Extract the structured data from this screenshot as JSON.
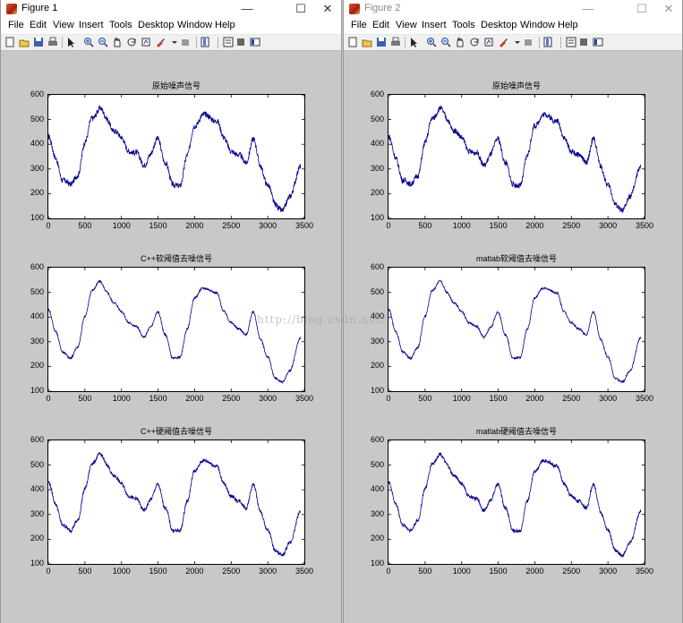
{
  "windows": [
    {
      "title": "Figure 1",
      "menu": [
        "File",
        "Edit",
        "View",
        "Insert",
        "Tools",
        "Desktop",
        "Window",
        "Help"
      ],
      "plots": [
        {
          "title": "原始噪声信号"
        },
        {
          "title": "C++软阈值去噪信号"
        },
        {
          "title": "C++硬阈值去噪信号"
        }
      ]
    },
    {
      "title": "Figure 2",
      "menu": [
        "File",
        "Edit",
        "View",
        "Insert",
        "Tools",
        "Desktop",
        "Window",
        "Help"
      ],
      "plots": [
        {
          "title": "原始噪声信号"
        },
        {
          "title": "matlab软阈值去噪信号"
        },
        {
          "title": "matlab硬阈值去噪信号"
        }
      ]
    }
  ],
  "window_controls": {
    "minimize": "—",
    "maximize": "☐",
    "close": "✕"
  },
  "toolbar_icons": [
    "new-figure-icon",
    "open-file-icon",
    "save-icon",
    "print-icon",
    "edit-plot-icon",
    "zoom-in-icon",
    "zoom-out-icon",
    "pan-icon",
    "rotate-3d-icon",
    "data-cursor-icon",
    "brush-icon",
    "brush-dropdown-icon",
    "link-plot-icon",
    "colorbar-icon",
    "legend-icon",
    "hide-plot-tools-icon",
    "show-plot-tools-icon"
  ],
  "watermark": "http://blog.csdn.net/",
  "axis": {
    "y_ticks": [
      "600",
      "500",
      "400",
      "300",
      "200",
      "100"
    ],
    "x_ticks": [
      "0",
      "500",
      "1000",
      "1500",
      "2000",
      "2500",
      "3000",
      "3500"
    ]
  },
  "colors": {
    "line": "#00008b",
    "background": "#c8c8c8",
    "axes_bg": "#ffffff"
  },
  "chart_data": [
    {
      "type": "line",
      "title": "原始噪声信号",
      "xlim": [
        0,
        3500
      ],
      "ylim": [
        100,
        600
      ],
      "noise": "high",
      "x": [
        0,
        100,
        200,
        300,
        400,
        500,
        600,
        700,
        800,
        900,
        1000,
        1100,
        1200,
        1300,
        1400,
        1500,
        1600,
        1700,
        1800,
        1900,
        2000,
        2100,
        2200,
        2300,
        2400,
        2500,
        2600,
        2700,
        2800,
        2900,
        3000,
        3100,
        3200,
        3300,
        3450
      ],
      "y": [
        430,
        340,
        260,
        230,
        280,
        400,
        510,
        545,
        500,
        460,
        420,
        380,
        360,
        320,
        360,
        420,
        330,
        230,
        240,
        350,
        480,
        515,
        510,
        500,
        420,
        380,
        350,
        330,
        420,
        310,
        240,
        150,
        140,
        180,
        320
      ]
    },
    {
      "type": "line",
      "title": "C++软阈值去噪信号",
      "xlim": [
        0,
        3500
      ],
      "ylim": [
        100,
        600
      ],
      "noise": "low",
      "x": [
        0,
        100,
        200,
        300,
        400,
        500,
        600,
        700,
        800,
        900,
        1000,
        1100,
        1200,
        1300,
        1400,
        1500,
        1600,
        1700,
        1800,
        1900,
        2000,
        2100,
        2200,
        2300,
        2400,
        2500,
        2600,
        2700,
        2800,
        2900,
        3000,
        3100,
        3200,
        3300,
        3450
      ],
      "y": [
        430,
        340,
        260,
        230,
        280,
        400,
        510,
        545,
        500,
        460,
        420,
        380,
        360,
        320,
        360,
        420,
        330,
        230,
        240,
        350,
        480,
        515,
        510,
        500,
        420,
        380,
        350,
        330,
        420,
        310,
        240,
        150,
        140,
        180,
        320
      ]
    },
    {
      "type": "line",
      "title": "C++硬阈值去噪信号",
      "xlim": [
        0,
        3500
      ],
      "ylim": [
        100,
        600
      ],
      "noise": "mid",
      "x": [
        0,
        100,
        200,
        300,
        400,
        500,
        600,
        700,
        800,
        900,
        1000,
        1100,
        1200,
        1300,
        1400,
        1500,
        1600,
        1700,
        1800,
        1900,
        2000,
        2100,
        2200,
        2300,
        2400,
        2500,
        2600,
        2700,
        2800,
        2900,
        3000,
        3100,
        3200,
        3300,
        3450
      ],
      "y": [
        430,
        340,
        260,
        230,
        280,
        400,
        510,
        545,
        500,
        460,
        420,
        380,
        360,
        320,
        360,
        420,
        330,
        230,
        240,
        350,
        480,
        515,
        510,
        500,
        420,
        380,
        350,
        330,
        420,
        310,
        240,
        150,
        140,
        180,
        320
      ]
    },
    {
      "type": "line",
      "title": "原始噪声信号",
      "xlim": [
        0,
        3500
      ],
      "ylim": [
        100,
        600
      ],
      "noise": "high",
      "x": [
        0,
        100,
        200,
        300,
        400,
        500,
        600,
        700,
        800,
        900,
        1000,
        1100,
        1200,
        1300,
        1400,
        1500,
        1600,
        1700,
        1800,
        1900,
        2000,
        2100,
        2200,
        2300,
        2400,
        2500,
        2600,
        2700,
        2800,
        2900,
        3000,
        3100,
        3200,
        3300,
        3450
      ],
      "y": [
        430,
        340,
        260,
        230,
        280,
        400,
        510,
        545,
        500,
        460,
        420,
        380,
        360,
        320,
        360,
        420,
        330,
        230,
        240,
        350,
        480,
        515,
        510,
        500,
        420,
        380,
        350,
        330,
        420,
        310,
        240,
        150,
        140,
        180,
        320
      ]
    },
    {
      "type": "line",
      "title": "matlab软阈值去噪信号",
      "xlim": [
        0,
        3500
      ],
      "ylim": [
        100,
        600
      ],
      "noise": "low",
      "x": [
        0,
        100,
        200,
        300,
        400,
        500,
        600,
        700,
        800,
        900,
        1000,
        1100,
        1200,
        1300,
        1400,
        1500,
        1600,
        1700,
        1800,
        1900,
        2000,
        2100,
        2200,
        2300,
        2400,
        2500,
        2600,
        2700,
        2800,
        2900,
        3000,
        3100,
        3200,
        3300,
        3450
      ],
      "y": [
        430,
        340,
        260,
        230,
        280,
        400,
        510,
        545,
        500,
        460,
        420,
        380,
        360,
        320,
        360,
        420,
        330,
        230,
        240,
        350,
        480,
        515,
        510,
        500,
        420,
        380,
        350,
        330,
        420,
        310,
        240,
        150,
        140,
        180,
        320
      ]
    },
    {
      "type": "line",
      "title": "matlab硬阈值去噪信号",
      "xlim": [
        0,
        3500
      ],
      "ylim": [
        100,
        600
      ],
      "noise": "mid",
      "x": [
        0,
        100,
        200,
        300,
        400,
        500,
        600,
        700,
        800,
        900,
        1000,
        1100,
        1200,
        1300,
        1400,
        1500,
        1600,
        1700,
        1800,
        1900,
        2000,
        2100,
        2200,
        2300,
        2400,
        2500,
        2600,
        2700,
        2800,
        2900,
        3000,
        3100,
        3200,
        3300,
        3450
      ],
      "y": [
        430,
        340,
        260,
        230,
        280,
        400,
        510,
        545,
        500,
        460,
        420,
        380,
        360,
        320,
        360,
        420,
        330,
        230,
        240,
        350,
        480,
        515,
        510,
        500,
        420,
        380,
        350,
        330,
        420,
        310,
        240,
        150,
        140,
        180,
        320
      ]
    }
  ]
}
